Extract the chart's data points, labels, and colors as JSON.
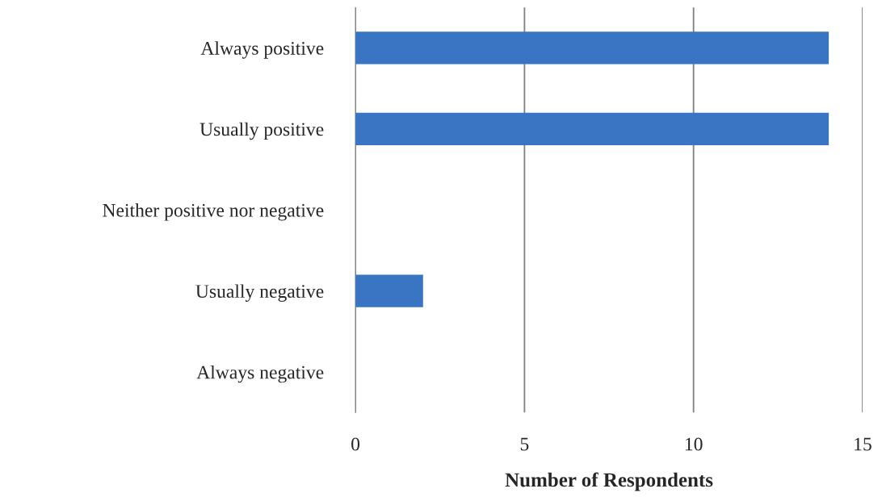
{
  "chart_data": {
    "type": "bar",
    "orientation": "horizontal",
    "categories": [
      "Always positive",
      "Usually positive",
      "Neither positive nor negative",
      "Usually negative",
      "Always negative"
    ],
    "values": [
      14,
      14,
      0,
      2,
      0
    ],
    "color": "#3a75c4",
    "xlim": [
      0,
      15
    ],
    "xticks": [
      0,
      5,
      10,
      15
    ],
    "xlabel": "Number of Respondents",
    "grid": "x"
  }
}
